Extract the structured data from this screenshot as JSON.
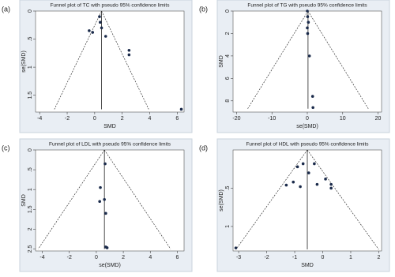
{
  "chart_data": [
    {
      "type": "funnel",
      "panel_label": "(a)",
      "title": "Funnel plot of TC with pseudo 95% confidence limits",
      "x_label": "SMD",
      "y_label": "se(SMD)",
      "x": [
        -0.4,
        -0.15,
        0.35,
        0.4,
        0.5,
        0.8,
        2.5,
        2.5,
        6.3
      ],
      "values": [
        0.35,
        0.38,
        0.1,
        0.2,
        0.3,
        0.45,
        0.7,
        0.78,
        1.75
      ],
      "pooled_estimate": 0.5,
      "funnel_se_max": 1.75,
      "xlim": [
        -4.3,
        6.5
      ],
      "ylim": [
        0,
        1.8
      ],
      "xticks": [
        -4,
        -2,
        0,
        2,
        4,
        6
      ],
      "yticks": [
        0,
        {
          "value": 0.5,
          "label": ".5"
        },
        1,
        {
          "value": 1.5,
          "label": "1.5"
        }
      ],
      "color": "#1a2a4a"
    },
    {
      "type": "funnel",
      "panel_label": "(b)",
      "title": "Funnel plot of TG with pseudo 95% confidence limits",
      "x_label": "se(SMD)",
      "y_label": "SMD",
      "x": [
        0,
        0.1,
        0.3,
        0,
        0.1,
        0.6,
        1.5,
        1.6
      ],
      "values": [
        0,
        0.5,
        1,
        1.5,
        2,
        4,
        7.6,
        8.6
      ],
      "pooled_estimate": 0.2,
      "funnel_se_max": 8.7,
      "xlim": [
        -21,
        21
      ],
      "ylim": [
        0,
        9
      ],
      "xticks": [
        -20,
        -10,
        0,
        10,
        20
      ],
      "yticks": [
        0,
        2,
        4,
        6,
        8
      ],
      "color": "#1a2a4a"
    },
    {
      "type": "funnel",
      "panel_label": "(c)",
      "title": "Funnel plot of LDL with pseudo 95% confidence limits",
      "x_label": "se(SMD)",
      "y_label": "SMD",
      "x": [
        0.65,
        0.3,
        0.6,
        0.25,
        0.7,
        0.7,
        0.8
      ],
      "values": [
        0.35,
        0.95,
        1.25,
        1.3,
        1.6,
        2.45,
        2.47
      ],
      "pooled_estimate": 0.6,
      "funnel_se_max": 2.5,
      "xlim": [
        -4.5,
        6.5
      ],
      "ylim": [
        0,
        2.55
      ],
      "xticks": [
        -4,
        -2,
        0,
        2,
        4,
        6
      ],
      "yticks": [
        0,
        {
          "value": 0.5,
          "label": ".5"
        },
        1,
        {
          "value": 1.5,
          "label": "1.5"
        },
        2,
        {
          "value": 2.5,
          "label": "2.5"
        }
      ],
      "color": "#1a2a4a"
    },
    {
      "type": "funnel",
      "panel_label": "(d)",
      "title": "Funnel plot of HDL with pseudo 95% confidence limits",
      "x_label": "SMD",
      "y_label": "se(SMD)",
      "x": [
        -3.1,
        -1.3,
        -1.05,
        -0.9,
        -0.8,
        -0.7,
        -0.5,
        -0.3,
        -0.2,
        0.1,
        0.3,
        0.3
      ],
      "values": [
        1.28,
        0.46,
        0.42,
        0.22,
        0.48,
        0.18,
        0.3,
        0.18,
        0.45,
        0.38,
        0.45,
        0.5
      ],
      "pooled_estimate": -0.55,
      "funnel_se_max": 1.3,
      "xlim": [
        -3.2,
        2.1
      ],
      "ylim": [
        0,
        1.32
      ],
      "xticks": [
        -3,
        -2,
        -1,
        0,
        1,
        2
      ],
      "yticks": [
        {
          "value": 0.5,
          "label": ".5"
        },
        1
      ],
      "color": "#1a2a4a"
    }
  ]
}
